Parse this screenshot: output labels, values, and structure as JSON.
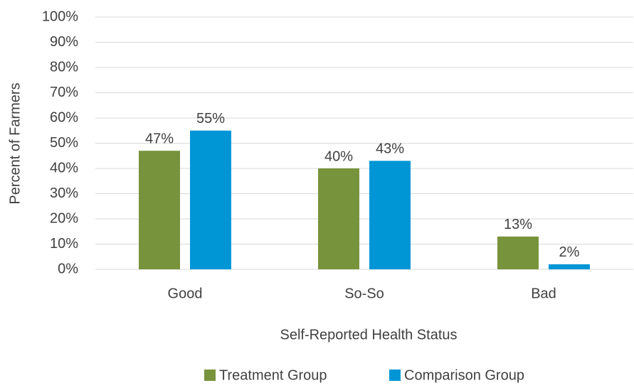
{
  "chart_data": {
    "type": "bar",
    "x_label": "Self-Reported Health Status",
    "y_label": "Percent of Farmers",
    "categories": [
      "Good",
      "So-So",
      "Bad"
    ],
    "series": [
      {
        "name": "Treatment Group",
        "color": "#77933c",
        "values": [
          47,
          40,
          13
        ],
        "value_labels": [
          "47%",
          "40%",
          "13%"
        ]
      },
      {
        "name": "Comparison Group",
        "color": "#0096d6",
        "values": [
          55,
          43,
          2
        ],
        "value_labels": [
          "55%",
          "43%",
          "2%"
        ]
      }
    ],
    "ylim": [
      0,
      100
    ],
    "yticks": [
      {
        "value": 0,
        "label": "0%"
      },
      {
        "value": 10,
        "label": "10%"
      },
      {
        "value": 20,
        "label": "20%"
      },
      {
        "value": 30,
        "label": "30%"
      },
      {
        "value": 40,
        "label": "40%"
      },
      {
        "value": 50,
        "label": "50%"
      },
      {
        "value": 60,
        "label": "60%"
      },
      {
        "value": 70,
        "label": "70%"
      },
      {
        "value": 80,
        "label": "80%"
      },
      {
        "value": 90,
        "label": "90%"
      },
      {
        "value": 100,
        "label": "100%"
      }
    ],
    "grid": true,
    "legend": "bottom"
  }
}
